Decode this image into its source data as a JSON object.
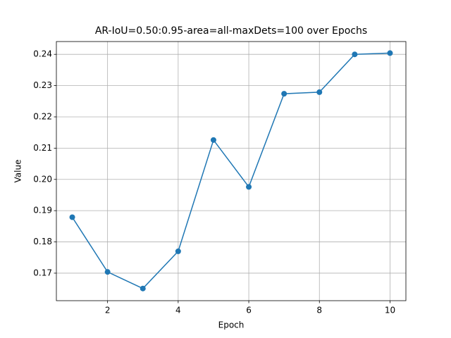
{
  "chart_data": {
    "type": "line",
    "title": "AR-IoU=0.50:0.95-area=all-maxDets=100 over Epochs",
    "x_label": "Epoch",
    "y_label": "Value",
    "x": [
      1,
      2,
      3,
      4,
      5,
      6,
      7,
      8,
      9,
      10
    ],
    "series": [
      {
        "name": "AR-IoU=0.50:0.95-area=all-maxDets=100",
        "color": "#1f77b4",
        "values": [
          0.1879,
          0.1704,
          0.1651,
          0.177,
          0.2126,
          0.1976,
          0.2274,
          0.2279,
          0.24,
          0.2404
        ]
      }
    ],
    "xlim": [
      0.55,
      10.45
    ],
    "xticks": [
      2,
      4,
      6,
      8,
      10
    ],
    "ylim": [
      0.1612,
      0.2441
    ],
    "yticks": [
      0.17,
      0.18,
      0.19,
      {
        "value": 0.2,
        "label": "0.20"
      },
      0.21,
      0.22,
      0.23,
      0.24
    ],
    "grid": true,
    "legend": false
  }
}
